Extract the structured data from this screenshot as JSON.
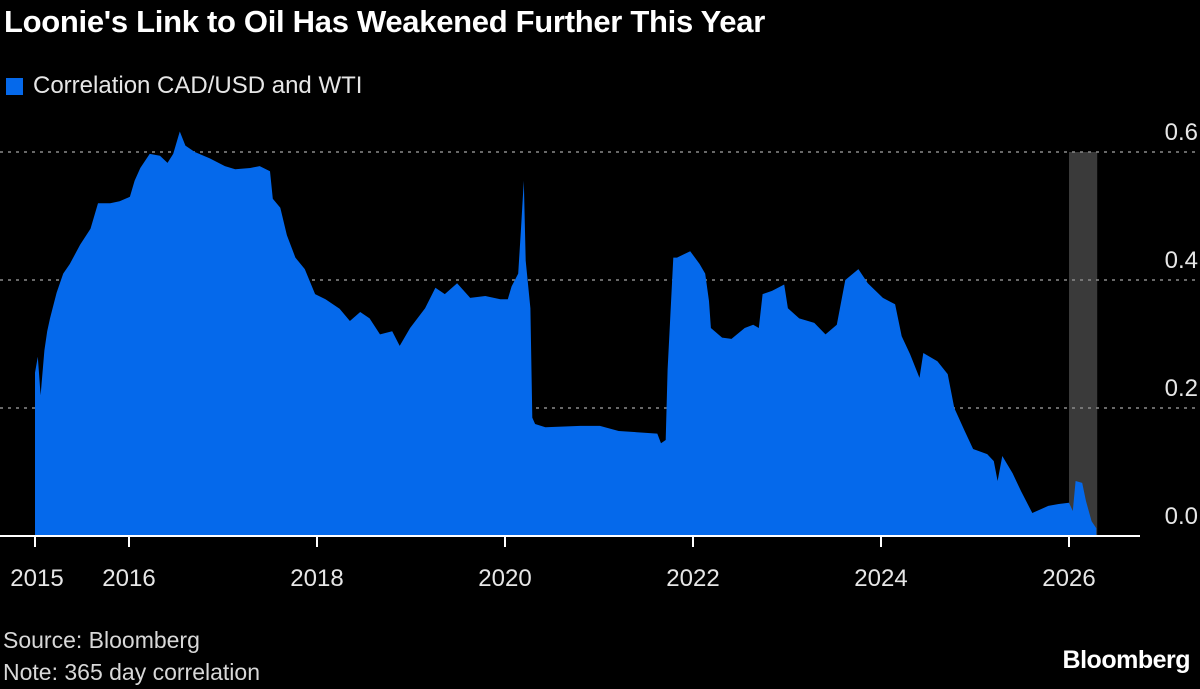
{
  "title": "Loonie's Link to Oil Has Weakened Further This Year",
  "source": "Source: Bloomberg",
  "note": "Note: 365 day correlation",
  "logo": "Bloomberg",
  "colors": {
    "series": "#0569eb",
    "background": "#000000",
    "shade": "#3a3a3a",
    "grid": "#8a8a8a"
  },
  "chart_data": {
    "type": "area",
    "title": "Loonie's Link to Oil Has Weakened Further This Year",
    "xlabel": "",
    "ylabel": "",
    "xlim": [
      2015.0,
      2027.3
    ],
    "ylim": [
      0,
      0.6
    ],
    "x_ticks": [
      2015,
      2016,
      2018,
      2020,
      2022,
      2024,
      2026
    ],
    "x_tick_labels": [
      "2015",
      "2016",
      "2018",
      "2020",
      "2022",
      "2024",
      "2026"
    ],
    "y_ticks": [
      0.0,
      0.2,
      0.4,
      0.6
    ],
    "y_tick_labels": [
      "0.0",
      "0.2",
      "0.4",
      "0.6"
    ],
    "y_axis_side": "right",
    "grid": "horizontal dotted",
    "legend_placement": "top-left",
    "shaded_region": {
      "x": [
        2026.0,
        2026.3
      ],
      "y": [
        0,
        0.6
      ]
    },
    "series": [
      {
        "name": "Correlation CAD/USD and WTI",
        "x": [
          2015.0,
          2015.03,
          2015.06,
          2015.1,
          2015.13,
          2015.16,
          2015.23,
          2015.3,
          2015.37,
          2015.48,
          2015.59,
          2015.67,
          2015.8,
          2015.9,
          2016.01,
          2016.06,
          2016.12,
          2016.22,
          2016.33,
          2016.41,
          2016.47,
          2016.52,
          2016.54,
          2016.6,
          2016.7,
          2016.86,
          2017.02,
          2017.13,
          2017.29,
          2017.39,
          2017.5,
          2017.53,
          2017.61,
          2017.68,
          2017.77,
          2017.87,
          2017.98,
          2018.09,
          2018.24,
          2018.35,
          2018.46,
          2018.56,
          2018.67,
          2018.8,
          2018.88,
          2018.99,
          2019.15,
          2019.26,
          2019.36,
          2019.49,
          2019.63,
          2019.79,
          2019.95,
          2020.03,
          2020.07,
          2020.14,
          2020.17,
          2020.2,
          2020.22,
          2020.27,
          2020.29,
          2020.32,
          2020.43,
          2020.8,
          2021.01,
          2021.21,
          2021.62,
          2021.66,
          2021.71,
          2021.73,
          2021.79,
          2021.83,
          2021.97,
          2022.07,
          2022.13,
          2022.17,
          2022.19,
          2022.31,
          2022.41,
          2022.55,
          2022.64,
          2022.7,
          2022.74,
          2022.84,
          2022.97,
          2023.01,
          2023.13,
          2023.29,
          2023.41,
          2023.53,
          2023.62,
          2023.76,
          2023.86,
          2024.02,
          2024.15,
          2024.22,
          2024.31,
          2024.41,
          2024.45,
          2024.6,
          2024.71,
          2024.78,
          2024.89,
          2024.98,
          2025.13,
          2025.2,
          2025.24,
          2025.29,
          2025.4,
          2025.49,
          2025.61,
          2025.78,
          2025.89,
          2026.0,
          2026.04,
          2026.07,
          2026.14,
          2026.18,
          2026.24,
          2026.29
        ],
        "values": [
          0.255,
          0.28,
          0.22,
          0.29,
          0.32,
          0.34,
          0.38,
          0.41,
          0.425,
          0.455,
          0.48,
          0.52,
          0.52,
          0.523,
          0.53,
          0.555,
          0.575,
          0.597,
          0.594,
          0.583,
          0.597,
          0.622,
          0.632,
          0.61,
          0.6,
          0.59,
          0.578,
          0.573,
          0.575,
          0.578,
          0.57,
          0.527,
          0.513,
          0.47,
          0.435,
          0.417,
          0.378,
          0.37,
          0.355,
          0.336,
          0.35,
          0.34,
          0.315,
          0.32,
          0.297,
          0.325,
          0.356,
          0.388,
          0.378,
          0.395,
          0.372,
          0.375,
          0.37,
          0.37,
          0.39,
          0.41,
          0.48,
          0.555,
          0.43,
          0.356,
          0.185,
          0.175,
          0.17,
          0.172,
          0.172,
          0.164,
          0.16,
          0.145,
          0.15,
          0.26,
          0.435,
          0.435,
          0.445,
          0.425,
          0.41,
          0.367,
          0.325,
          0.31,
          0.308,
          0.325,
          0.33,
          0.325,
          0.378,
          0.383,
          0.393,
          0.356,
          0.34,
          0.333,
          0.315,
          0.33,
          0.4,
          0.417,
          0.395,
          0.372,
          0.362,
          0.312,
          0.284,
          0.247,
          0.286,
          0.273,
          0.253,
          0.2,
          0.164,
          0.136,
          0.128,
          0.117,
          0.086,
          0.125,
          0.098,
          0.07,
          0.036,
          0.047,
          0.05,
          0.052,
          0.039,
          0.086,
          0.083,
          0.055,
          0.023,
          0.012
        ]
      }
    ]
  }
}
